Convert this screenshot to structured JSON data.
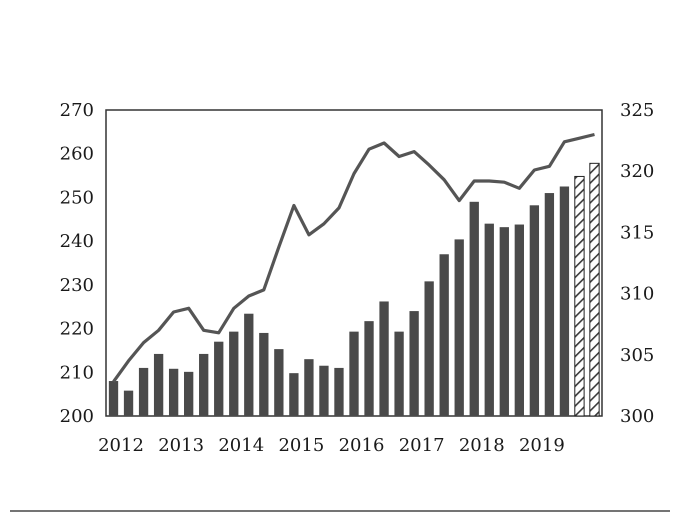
{
  "chart_data": {
    "type": "bar",
    "title": "",
    "xlabel": "",
    "ylabel": "",
    "grid": false,
    "x_tick_labels": [
      "2012",
      "2013",
      "2014",
      "2015",
      "2016",
      "2017",
      "2018",
      "2019"
    ],
    "y_left": {
      "range": [
        200,
        270
      ],
      "ticks": [
        "200",
        "210",
        "220",
        "230",
        "240",
        "250",
        "260",
        "270"
      ]
    },
    "y_right": {
      "range": [
        300,
        325
      ],
      "ticks": [
        "300",
        "305",
        "310",
        "315",
        "320",
        "325"
      ]
    },
    "series": [
      {
        "type": "bar",
        "axis": "left",
        "color": "#4a4a4a",
        "values": [
          208,
          205.8,
          211,
          214.2,
          210.8,
          210.1,
          214.2,
          217,
          219.3,
          223.4,
          219,
          215.3,
          209.8,
          213,
          211.5,
          211,
          219.3,
          221.7,
          226.2,
          219.3,
          224,
          230.8,
          237,
          240.4,
          249,
          244,
          243.2,
          243.8,
          248.2,
          251,
          252.5
        ]
      },
      {
        "type": "bar",
        "axis": "left",
        "style": "hatched",
        "color": "#4a4a4a",
        "values": [
          null,
          null,
          null,
          null,
          null,
          null,
          null,
          null,
          null,
          null,
          null,
          null,
          null,
          null,
          null,
          null,
          null,
          null,
          null,
          null,
          null,
          null,
          null,
          null,
          null,
          null,
          null,
          null,
          null,
          null,
          null,
          254.8,
          257.8
        ]
      },
      {
        "type": "line",
        "axis": "right",
        "color": "#555555",
        "values": [
          302.8,
          304.5,
          306,
          307,
          308.5,
          308.8,
          307,
          306.8,
          308.8,
          309.8,
          310.3,
          313.8,
          317.2,
          314.8,
          315.7,
          317,
          319.8,
          321.8,
          322.3,
          321.2,
          321.6,
          320.5,
          319.3,
          317.6,
          319.2,
          319.2,
          319.1,
          318.6,
          320.1,
          320.4,
          322.4,
          322.7,
          323
        ]
      }
    ]
  }
}
